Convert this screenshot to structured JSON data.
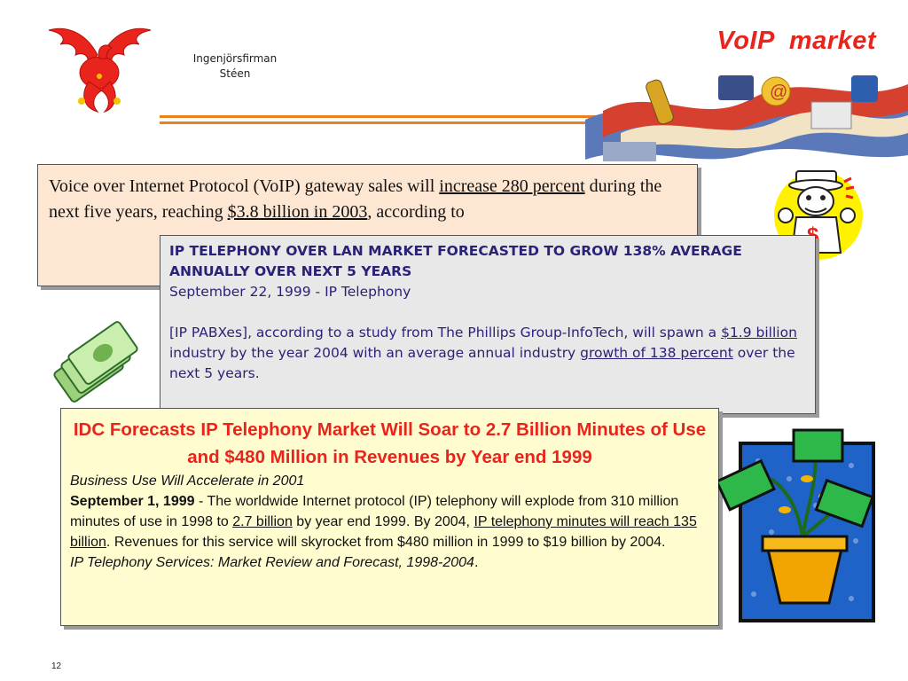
{
  "header": {
    "title": "VoIP  market",
    "company_line1": "Ingenjörsfirman",
    "company_line2": "Stéen",
    "accent_color": "#e8241c",
    "rule_color": "#ef7f1a"
  },
  "box1": {
    "t1": "Voice over Internet Protocol (VoIP) gateway sales will ",
    "u1": "increase 280 percent",
    "t2": " during the next five years, reaching ",
    "u2": "$3.8 billion in 2003",
    "t3": ", according to"
  },
  "box2": {
    "headline": "IP TELEPHONY OVER LAN MARKET FORECASTED TO GROW 138% AVERAGE ANNUALLY OVER NEXT 5 YEARS",
    "dateline": "September 22, 1999 - IP Telephony",
    "t1": "[IP PABXes], according to a study from The Phillips Group-InfoTech, will spawn a ",
    "u1": "$1.9 billion",
    "t2": " industry by the year 2004 with an average annual industry ",
    "u2": "growth of 138 percent",
    "t3": " over the next 5 years."
  },
  "box3": {
    "headline": "IDC Forecasts IP Telephony Market Will Soar to 2.7 Billion Minutes of Use and $480 Million in Revenues by Year end 1999",
    "subhead": "Business Use Will Accelerate in 2001",
    "date": "September 1, 1999",
    "t1": " - The worldwide Internet protocol (IP) telephony will explode from 310 million minutes of use in 1998 to ",
    "u1": "2.7 billion",
    "t2": " by year end 1999. By 2004, ",
    "u2": "IP telephony minutes will reach 135 billion",
    "t3": ". Revenues for this service will skyrocket from $480 million in 1999 to $19 billion by 2004.",
    "source": "IP Telephony Services: Market Review and Forecast, 1998-2004",
    "source_end": "."
  },
  "page_number": "12",
  "icons": [
    "dragon-logo-icon",
    "telecom-montage-icon",
    "money-stack-icon",
    "businessman-mascot-icon",
    "money-plant-icon"
  ]
}
